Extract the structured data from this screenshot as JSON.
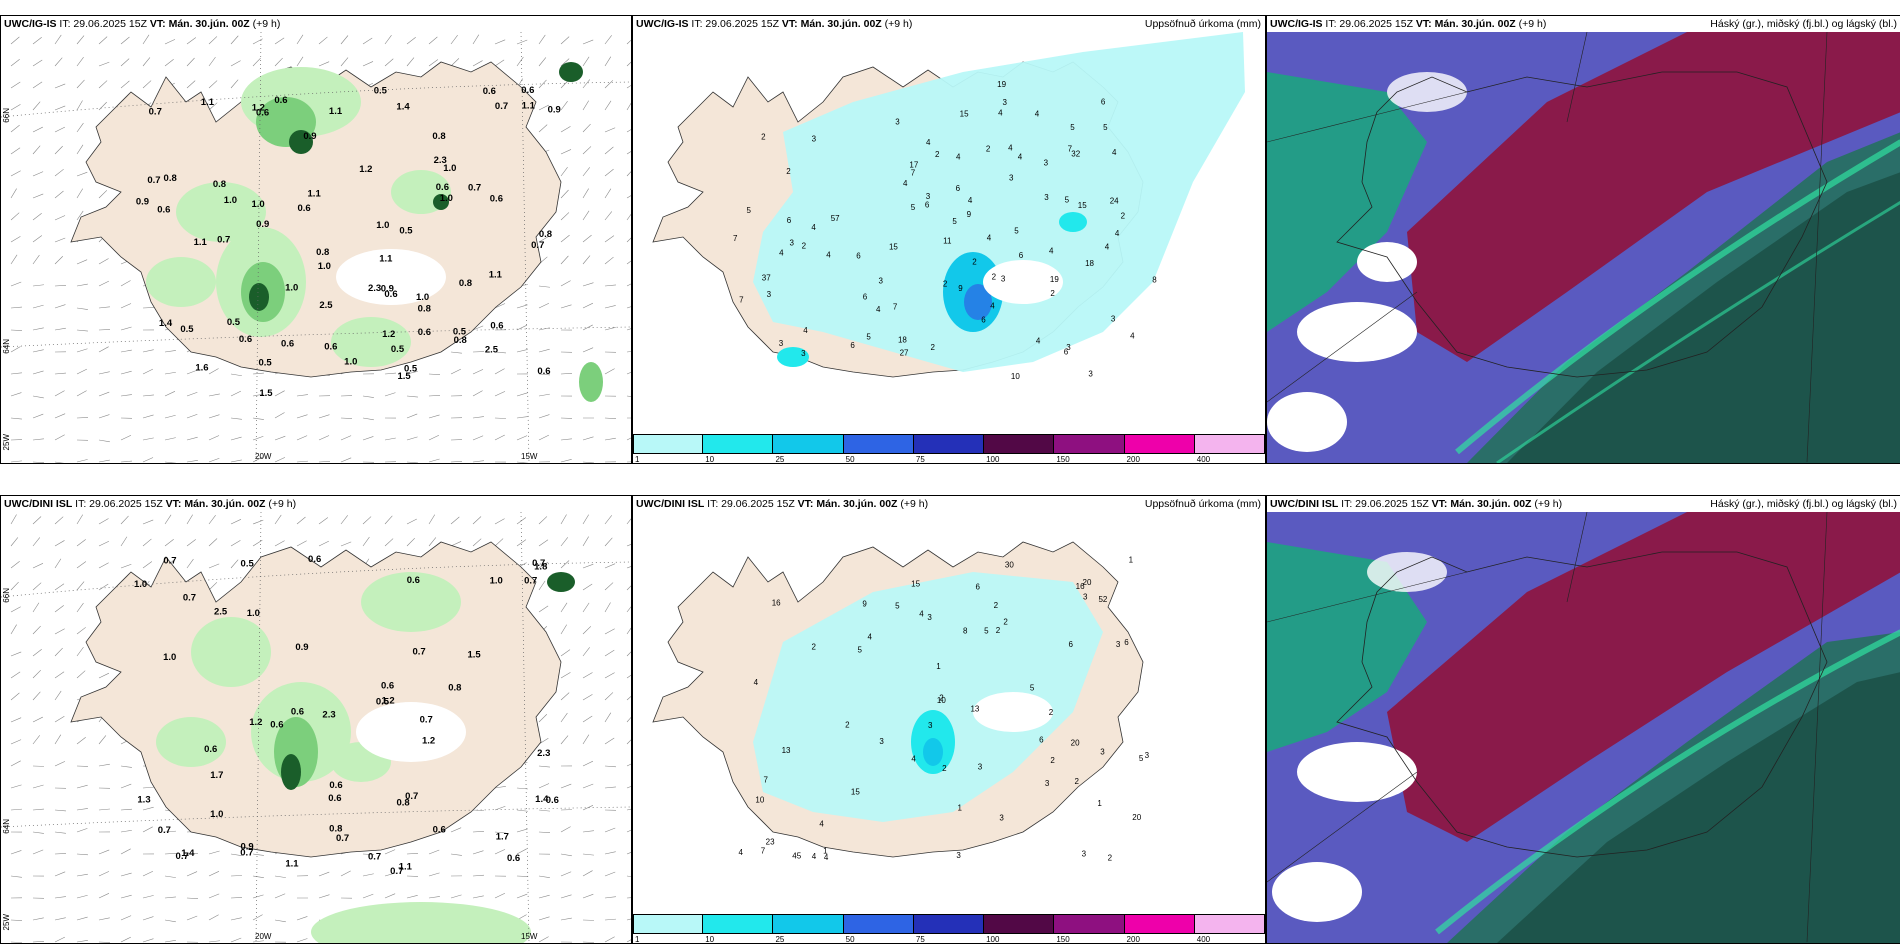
{
  "row1": {
    "wind": {
      "model": "UWC/IG-IS",
      "it": "IT: 29.06.2025 15Z",
      "vt": "VT: Mán. 30.jún. 00Z",
      "lead": "(+9 h)",
      "axis": {
        "lat66": "66N",
        "lat64": "64N",
        "lat63": "25W",
        "lon20": "20W",
        "lon15": "15W"
      },
      "labels": [
        "0.5",
        "0.6",
        "0.5",
        "0.8",
        "0.7",
        "0.5",
        "0.7",
        "0.9",
        "1.0",
        "0.6",
        "0.5",
        "0.7",
        "0.8",
        "0.9",
        "1.0",
        "0.6",
        "0.6",
        "0.7",
        "0.8",
        "0.6",
        "0.5",
        "0.6",
        "0.5",
        "0.8",
        "0.5",
        "1.0",
        "0.7",
        "1.0",
        "1.0",
        "0.9",
        "0.8",
        "0.6",
        "0.8",
        "0.6",
        "0.6",
        "0.6",
        "0.5",
        "0.8",
        "0.8",
        "1.0",
        "1.1",
        "1.0",
        "0.9",
        "0.6",
        "1.4",
        "1.1",
        "2.3",
        "2.5",
        "1.1",
        "1.1",
        "1.0",
        "1.2",
        "1.0",
        "2.3",
        "0.7",
        "0.6",
        "2.5",
        "1.1",
        "1.5",
        "1.4",
        "0.9",
        "1.5",
        "0.6",
        "1.1",
        "1.2",
        "1.6",
        "1.1",
        "1.2",
        "0.6",
        "0.6"
      ]
    },
    "precip": {
      "model": "UWC/IG-IS",
      "it": "IT: 29.06.2025 15Z",
      "vt": "VT: Mán. 30.jún. 00Z",
      "lead": "(+9 h)",
      "title": "Uppsöfnuð úrkoma (mm)",
      "values": [
        "3",
        "2",
        "2",
        "2",
        "3",
        "2",
        "4",
        "6",
        "3",
        "2",
        "4",
        "6",
        "4",
        "3",
        "4",
        "3",
        "4",
        "5",
        "5",
        "3",
        "6",
        "4",
        "5",
        "8",
        "4",
        "6",
        "4",
        "11",
        "6",
        "5",
        "3",
        "4",
        "6",
        "4",
        "17",
        "18",
        "4",
        "4",
        "5",
        "10",
        "3",
        "9",
        "5",
        "19",
        "15",
        "4",
        "4",
        "3",
        "2",
        "2",
        "6",
        "24",
        "19",
        "15",
        "4",
        "7",
        "27",
        "3",
        "2",
        "3",
        "18",
        "7",
        "3",
        "15",
        "7",
        "37",
        "57",
        "9",
        "4",
        "32",
        "2",
        "2",
        "6",
        "4",
        "3",
        "2",
        "4",
        "4",
        "3",
        "4",
        "5",
        "4",
        "3",
        "3",
        "6",
        "6",
        "7",
        "7",
        "5"
      ]
    },
    "cloud": {
      "model": "UWC/IG-IS",
      "it": "IT: 29.06.2025 15Z",
      "vt": "VT: Mán. 30.jún. 00Z",
      "lead": "(+9 h)",
      "title": "Háský (gr.), miðský (fj.bl.) og lágský (bl.)"
    }
  },
  "row2": {
    "wind": {
      "model": "UWC/DINI ISL",
      "it": "IT: 29.06.2025 15Z",
      "vt": "VT: Mán. 30.jún. 00Z",
      "lead": "(+9 h)",
      "axis": {
        "lat66": "66N",
        "lat64": "64N",
        "lat63": "25W",
        "lon20": "20W",
        "lon15": "15W"
      },
      "labels": [
        "1.1",
        "0.7",
        "0.9",
        "0.6",
        "0.5",
        "0.7",
        "1.2",
        "0.6",
        "0.6",
        "0.9",
        "1.0",
        "0.7",
        "0.6",
        "0.6",
        "0.6",
        "0.5",
        "1.0",
        "0.7",
        "0.6",
        "1.0",
        "0.8",
        "1.8",
        "0.6",
        "0.7",
        "1.5",
        "0.6",
        "1.3",
        "1.7",
        "0.7",
        "1.2",
        "2.3",
        "1.1",
        "0.6",
        "0.7",
        "1.0",
        "0.7",
        "1.4",
        "0.7",
        "0.7",
        "1.7",
        "1.2",
        "0.8",
        "0.6",
        "1.4",
        "1.0",
        "0.7",
        "2.3",
        "0.7",
        "2.5",
        "0.8",
        "0.7"
      ]
    },
    "precip": {
      "model": "UWC/DINI ISL",
      "it": "IT: 29.06.2025 15Z",
      "vt": "VT: Mán. 30.jún. 00Z",
      "lead": "(+9 h)",
      "title": "Uppsöfnuð úrkoma (mm)",
      "values": [
        "1",
        "2",
        "2",
        "3",
        "2",
        "3",
        "3",
        "2",
        "3",
        "2",
        "4",
        "2",
        "2",
        "1",
        "1",
        "3",
        "4",
        "4",
        "5",
        "3",
        "1",
        "2",
        "4",
        "4",
        "10",
        "7",
        "2",
        "3",
        "5",
        "6",
        "8",
        "7",
        "15",
        "15",
        "6",
        "5",
        "13",
        "5",
        "3",
        "5",
        "4",
        "6",
        "4",
        "9",
        "20",
        "13",
        "16",
        "23",
        "45",
        "52",
        "30",
        "10",
        "20",
        "3",
        "6",
        "20",
        "16",
        "2",
        "2",
        "3",
        "3",
        "4",
        "3",
        "1"
      ]
    },
    "cloud": {
      "model": "UWC/DINI ISL",
      "it": "IT: 29.06.2025 15Z",
      "vt": "VT: Mán. 30.jún. 00Z",
      "lead": "(+9 h)",
      "title": "Háský (gr.), miðský (fj.bl.) og lágský (bl.)"
    }
  },
  "colorbar": {
    "ticks": [
      "1",
      "10",
      "25",
      "50",
      "75",
      "100",
      "150",
      "200",
      "400"
    ],
    "colors": [
      "#b8f8f8",
      "#22e8ec",
      "#12c8ea",
      "#2e64e4",
      "#2430b8",
      "#520846",
      "#8e1080",
      "#ee00aa",
      "#f4b4ee"
    ]
  },
  "colors": {
    "land": "#f4e6d8",
    "sea": "#ffffff",
    "light_green": "#c4f0bc",
    "mid_green": "#7ccf7c",
    "dark_green": "#1a5e2a",
    "precip_light": "#b8f8f8",
    "high_cloud": "#5a5ac0",
    "mid_cloud": "#1aa87c",
    "low_cloud": "#8a1a4a"
  }
}
